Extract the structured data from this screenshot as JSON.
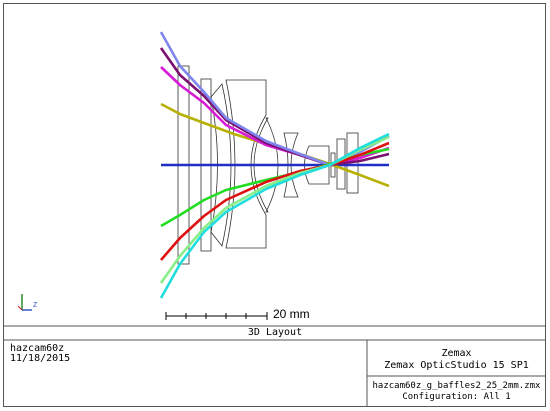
{
  "title": "3D Layout",
  "scale_bar_label": "20 mm",
  "footer": {
    "lens_name": "hazcam60z",
    "date": "11/18/2015",
    "vendor": "Zemax",
    "product": "Zemax OpticStudio 15 SP1",
    "file": "hazcam60z_g_baffles2_25_2mm.zmx",
    "configuration": "Configuration: All 1"
  },
  "axis_triad": {
    "label": "Z"
  },
  "colors": {
    "frame": "#555555",
    "lens": "#333333",
    "axis_y": "#2a8a2a",
    "axis_z": "#3355cc"
  },
  "ray_fans": [
    {
      "field": 1,
      "color": "#1f2fc8"
    },
    {
      "field": 2,
      "color": "#b8b000"
    },
    {
      "field": 3,
      "color": "#d61ad6"
    },
    {
      "field": 4,
      "color": "#7a1070"
    },
    {
      "field": 5,
      "color": "#7f86ee"
    },
    {
      "field": 6,
      "color": "#22dd22"
    },
    {
      "field": 7,
      "color": "#dd1111"
    },
    {
      "field": 8,
      "color": "#88ee88"
    },
    {
      "field": 9,
      "color": "#22dddd"
    }
  ]
}
